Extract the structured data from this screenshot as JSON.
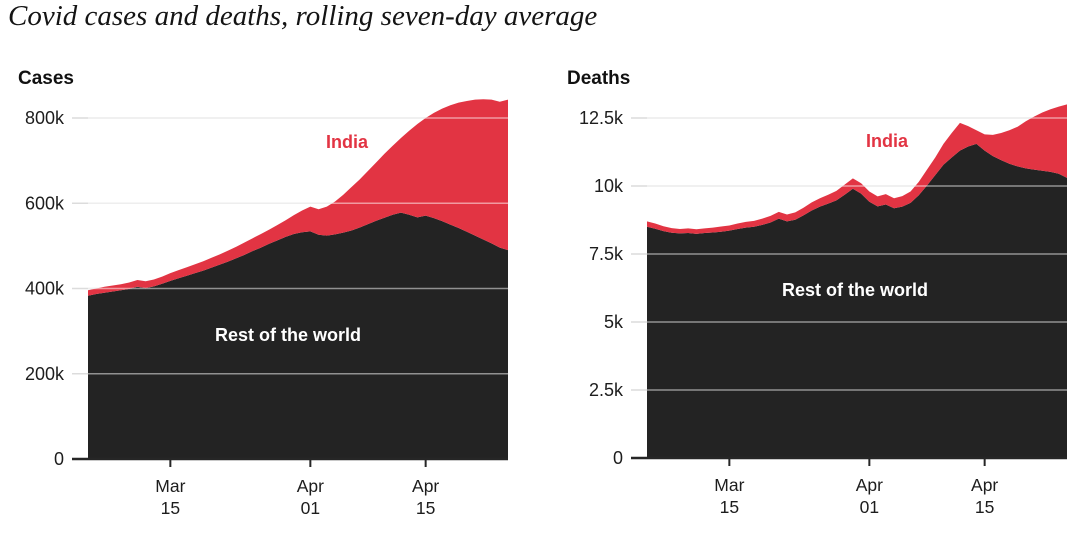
{
  "page": {
    "title": "Covid cases and deaths, rolling seven-day average"
  },
  "colors": {
    "india_red": "#e23443",
    "world_dark": "#232323",
    "gridline_light": "#dcdcdc",
    "gridline_overlay": "rgba(255,255,255,0.5)",
    "axis_dark": "#262626",
    "label_white": "#ffffff",
    "text_dark": "#1d1d1d"
  },
  "chart_data": [
    {
      "type": "area",
      "stacked": true,
      "panel_title": "Cases",
      "units": "thousands of cases per day (k)",
      "legend_position": "inline-labels",
      "grid": true,
      "dates": [
        "Mar 5",
        "Mar 6",
        "Mar 7",
        "Mar 8",
        "Mar 9",
        "Mar 10",
        "Mar 11",
        "Mar 12",
        "Mar 13",
        "Mar 14",
        "Mar 15",
        "Mar 16",
        "Mar 17",
        "Mar 18",
        "Mar 19",
        "Mar 20",
        "Mar 21",
        "Mar 22",
        "Mar 23",
        "Mar 24",
        "Mar 25",
        "Mar 26",
        "Mar 27",
        "Mar 28",
        "Mar 29",
        "Mar 30",
        "Mar 31",
        "Apr 1",
        "Apr 2",
        "Apr 3",
        "Apr 4",
        "Apr 5",
        "Apr 6",
        "Apr 7",
        "Apr 8",
        "Apr 9",
        "Apr 10",
        "Apr 11",
        "Apr 12",
        "Apr 13",
        "Apr 14",
        "Apr 15",
        "Apr 16",
        "Apr 17",
        "Apr 18",
        "Apr 19",
        "Apr 20",
        "Apr 21",
        "Apr 22",
        "Apr 23",
        "Apr 24",
        "Apr 25"
      ],
      "series": [
        {
          "name": "Rest of the world",
          "color_key": "world_dark",
          "values": [
            383,
            387,
            390,
            393,
            396,
            399,
            404,
            401,
            405,
            411,
            418,
            424,
            430,
            436,
            442,
            449,
            456,
            463,
            471,
            479,
            488,
            496,
            505,
            513,
            521,
            528,
            532,
            534,
            526,
            524,
            527,
            531,
            536,
            543,
            551,
            559,
            566,
            573,
            578,
            573,
            567,
            571,
            565,
            558,
            550,
            542,
            533,
            524,
            515,
            506,
            496,
            490
          ]
        },
        {
          "name": "India",
          "color_key": "india_red",
          "values": [
            13,
            13,
            14,
            14,
            14,
            15,
            16,
            16,
            16,
            17,
            18,
            19,
            20,
            21,
            22,
            23,
            24,
            26,
            27,
            29,
            30,
            32,
            33,
            36,
            39,
            44,
            51,
            58,
            60,
            68,
            77,
            89,
            102,
            113,
            125,
            137,
            150,
            162,
            175,
            197,
            219,
            229,
            247,
            264,
            280,
            294,
            307,
            319,
            329,
            337,
            342,
            353
          ]
        }
      ],
      "ylim": [
        0,
        880
      ],
      "yticks": [
        {
          "value": 0,
          "label": "0"
        },
        {
          "value": 200,
          "label": "200k"
        },
        {
          "value": 400,
          "label": "400k"
        },
        {
          "value": 600,
          "label": "600k"
        },
        {
          "value": 800,
          "label": "800k"
        }
      ],
      "xticks": [
        {
          "index": 10,
          "line1": "Mar",
          "line2": "15"
        },
        {
          "index": 27,
          "line1": "Apr",
          "line2": "01"
        },
        {
          "index": 41,
          "line1": "Apr",
          "line2": "15"
        }
      ],
      "annotations": [
        {
          "text": "India",
          "color_key": "india_red"
        },
        {
          "text": "Rest of the world",
          "color_key": "label_white"
        }
      ]
    },
    {
      "type": "area",
      "stacked": true,
      "panel_title": "Deaths",
      "units": "thousands of deaths per day (k)",
      "legend_position": "inline-labels",
      "grid": true,
      "dates": [
        "Mar 5",
        "Mar 6",
        "Mar 7",
        "Mar 8",
        "Mar 9",
        "Mar 10",
        "Mar 11",
        "Mar 12",
        "Mar 13",
        "Mar 14",
        "Mar 15",
        "Mar 16",
        "Mar 17",
        "Mar 18",
        "Mar 19",
        "Mar 20",
        "Mar 21",
        "Mar 22",
        "Mar 23",
        "Mar 24",
        "Mar 25",
        "Mar 26",
        "Mar 27",
        "Mar 28",
        "Mar 29",
        "Mar 30",
        "Mar 31",
        "Apr 1",
        "Apr 2",
        "Apr 3",
        "Apr 4",
        "Apr 5",
        "Apr 6",
        "Apr 7",
        "Apr 8",
        "Apr 9",
        "Apr 10",
        "Apr 11",
        "Apr 12",
        "Apr 13",
        "Apr 14",
        "Apr 15",
        "Apr 16",
        "Apr 17",
        "Apr 18",
        "Apr 19",
        "Apr 20",
        "Apr 21",
        "Apr 22",
        "Apr 23",
        "Apr 24",
        "Apr 25"
      ],
      "series": [
        {
          "name": "Rest of the world",
          "color_key": "world_dark",
          "values": [
            8.5,
            8.43,
            8.34,
            8.28,
            8.26,
            8.27,
            8.24,
            8.27,
            8.29,
            8.32,
            8.36,
            8.42,
            8.47,
            8.5,
            8.57,
            8.66,
            8.8,
            8.7,
            8.76,
            8.92,
            9.1,
            9.24,
            9.35,
            9.47,
            9.68,
            9.9,
            9.72,
            9.42,
            9.25,
            9.32,
            9.18,
            9.24,
            9.38,
            9.66,
            10.02,
            10.4,
            10.78,
            11.05,
            11.3,
            11.45,
            11.55,
            11.3,
            11.1,
            10.95,
            10.82,
            10.72,
            10.65,
            10.6,
            10.56,
            10.52,
            10.45,
            10.3
          ]
        },
        {
          "name": "India",
          "color_key": "india_red",
          "values": [
            0.2,
            0.19,
            0.18,
            0.17,
            0.16,
            0.17,
            0.17,
            0.17,
            0.18,
            0.19,
            0.19,
            0.2,
            0.21,
            0.22,
            0.23,
            0.24,
            0.25,
            0.25,
            0.27,
            0.28,
            0.3,
            0.31,
            0.33,
            0.35,
            0.37,
            0.38,
            0.38,
            0.38,
            0.37,
            0.38,
            0.37,
            0.39,
            0.42,
            0.49,
            0.58,
            0.65,
            0.77,
            0.9,
            1.02,
            0.75,
            0.5,
            0.6,
            0.78,
            1.0,
            1.23,
            1.46,
            1.73,
            1.95,
            2.14,
            2.3,
            2.47,
            2.7
          ]
        }
      ],
      "ylim": [
        0,
        13.5
      ],
      "yticks": [
        {
          "value": 0,
          "label": "0"
        },
        {
          "value": 2.5,
          "label": "2.5k"
        },
        {
          "value": 5,
          "label": "5k"
        },
        {
          "value": 7.5,
          "label": "7.5k"
        },
        {
          "value": 10,
          "label": "10k"
        },
        {
          "value": 12.5,
          "label": "12.5k"
        }
      ],
      "xticks": [
        {
          "index": 10,
          "line1": "Mar",
          "line2": "15"
        },
        {
          "index": 27,
          "line1": "Apr",
          "line2": "01"
        },
        {
          "index": 41,
          "line1": "Apr",
          "line2": "15"
        }
      ],
      "annotations": [
        {
          "text": "India",
          "color_key": "india_red"
        },
        {
          "text": "Rest of the world",
          "color_key": "label_white"
        }
      ]
    }
  ]
}
